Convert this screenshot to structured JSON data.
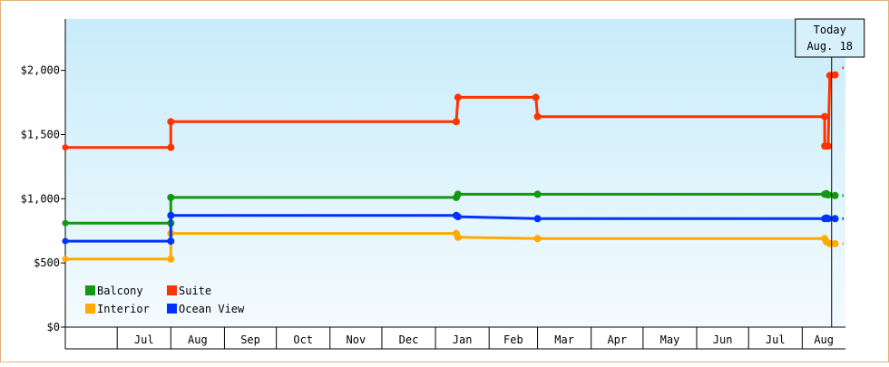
{
  "chart_data": {
    "type": "line",
    "step": true,
    "title": "",
    "xlabel": "",
    "ylabel": "",
    "ylim": [
      0,
      2400
    ],
    "y_ticks": [
      {
        "value": 0,
        "label": "$0"
      },
      {
        "value": 500,
        "label": "$500"
      },
      {
        "value": 1000,
        "label": "$1,000"
      },
      {
        "value": 1500,
        "label": "$1,500"
      },
      {
        "value": 2000,
        "label": "$2,000"
      }
    ],
    "x_range": [
      "2024-06-01",
      "2025-08-26"
    ],
    "x_ticks": [
      {
        "date": "2024-06-01",
        "label": ""
      },
      {
        "date": "2024-07-01",
        "label": "Jul"
      },
      {
        "date": "2024-08-01",
        "label": "Aug"
      },
      {
        "date": "2024-09-01",
        "label": "Sep"
      },
      {
        "date": "2024-10-01",
        "label": "Oct"
      },
      {
        "date": "2024-11-01",
        "label": "Nov"
      },
      {
        "date": "2024-12-01",
        "label": "Dec"
      },
      {
        "date": "2025-01-01",
        "label": "Jan"
      },
      {
        "date": "2025-02-01",
        "label": "Feb"
      },
      {
        "date": "2025-03-01",
        "label": "Mar"
      },
      {
        "date": "2025-04-01",
        "label": "Apr"
      },
      {
        "date": "2025-05-01",
        "label": "May"
      },
      {
        "date": "2025-06-01",
        "label": "Jun"
      },
      {
        "date": "2025-07-01",
        "label": "Jul"
      },
      {
        "date": "2025-08-01",
        "label": "Aug"
      }
    ],
    "today": {
      "date": "2025-08-18",
      "label_line1": "Today",
      "label_line2": "Aug. 18"
    },
    "legend_position": "bottom-left",
    "grid": false,
    "series": [
      {
        "name": "Balcony",
        "color": "#119911",
        "points": [
          {
            "date": "2024-06-01",
            "value": 810
          },
          {
            "date": "2024-08-01",
            "value": 810
          },
          {
            "date": "2024-08-01",
            "value": 1010
          },
          {
            "date": "2025-01-13",
            "value": 1010
          },
          {
            "date": "2025-01-14",
            "value": 1035
          },
          {
            "date": "2025-03-01",
            "value": 1035
          },
          {
            "date": "2025-08-14",
            "value": 1035
          },
          {
            "date": "2025-08-15",
            "value": 1040
          },
          {
            "date": "2025-08-16",
            "value": 1030
          },
          {
            "date": "2025-08-20",
            "value": 1025
          }
        ],
        "projection": 1025
      },
      {
        "name": "Suite",
        "color": "#ff3300",
        "points": [
          {
            "date": "2024-06-01",
            "value": 1400
          },
          {
            "date": "2024-08-01",
            "value": 1400
          },
          {
            "date": "2024-08-01",
            "value": 1600
          },
          {
            "date": "2025-01-13",
            "value": 1600
          },
          {
            "date": "2025-01-14",
            "value": 1790
          },
          {
            "date": "2025-02-28",
            "value": 1790
          },
          {
            "date": "2025-03-01",
            "value": 1640
          },
          {
            "date": "2025-08-14",
            "value": 1640
          },
          {
            "date": "2025-08-14",
            "value": 1410
          },
          {
            "date": "2025-08-16",
            "value": 1410
          },
          {
            "date": "2025-08-17",
            "value": 1960
          },
          {
            "date": "2025-08-20",
            "value": 1965
          }
        ],
        "projection": 2020
      },
      {
        "name": "Interior",
        "color": "#ffaa00",
        "points": [
          {
            "date": "2024-06-01",
            "value": 530
          },
          {
            "date": "2024-08-01",
            "value": 530
          },
          {
            "date": "2024-08-01",
            "value": 730
          },
          {
            "date": "2025-01-13",
            "value": 730
          },
          {
            "date": "2025-01-14",
            "value": 700
          },
          {
            "date": "2025-03-01",
            "value": 690
          },
          {
            "date": "2025-08-14",
            "value": 690
          },
          {
            "date": "2025-08-15",
            "value": 665
          },
          {
            "date": "2025-08-17",
            "value": 650
          },
          {
            "date": "2025-08-20",
            "value": 650
          }
        ],
        "projection": 650
      },
      {
        "name": "Ocean View",
        "color": "#0033ff",
        "points": [
          {
            "date": "2024-06-01",
            "value": 670
          },
          {
            "date": "2024-08-01",
            "value": 670
          },
          {
            "date": "2024-08-01",
            "value": 870
          },
          {
            "date": "2025-01-13",
            "value": 870
          },
          {
            "date": "2025-01-14",
            "value": 860
          },
          {
            "date": "2025-03-01",
            "value": 845
          },
          {
            "date": "2025-08-14",
            "value": 845
          },
          {
            "date": "2025-08-15",
            "value": 850
          },
          {
            "date": "2025-08-16",
            "value": 845
          },
          {
            "date": "2025-08-20",
            "value": 845
          }
        ],
        "projection": 845
      }
    ],
    "legend": [
      {
        "name": "Balcony",
        "color": "#119911"
      },
      {
        "name": "Suite",
        "color": "#ff3300"
      },
      {
        "name": "Interior",
        "color": "#ffaa00"
      },
      {
        "name": "Ocean View",
        "color": "#0033ff"
      }
    ]
  }
}
